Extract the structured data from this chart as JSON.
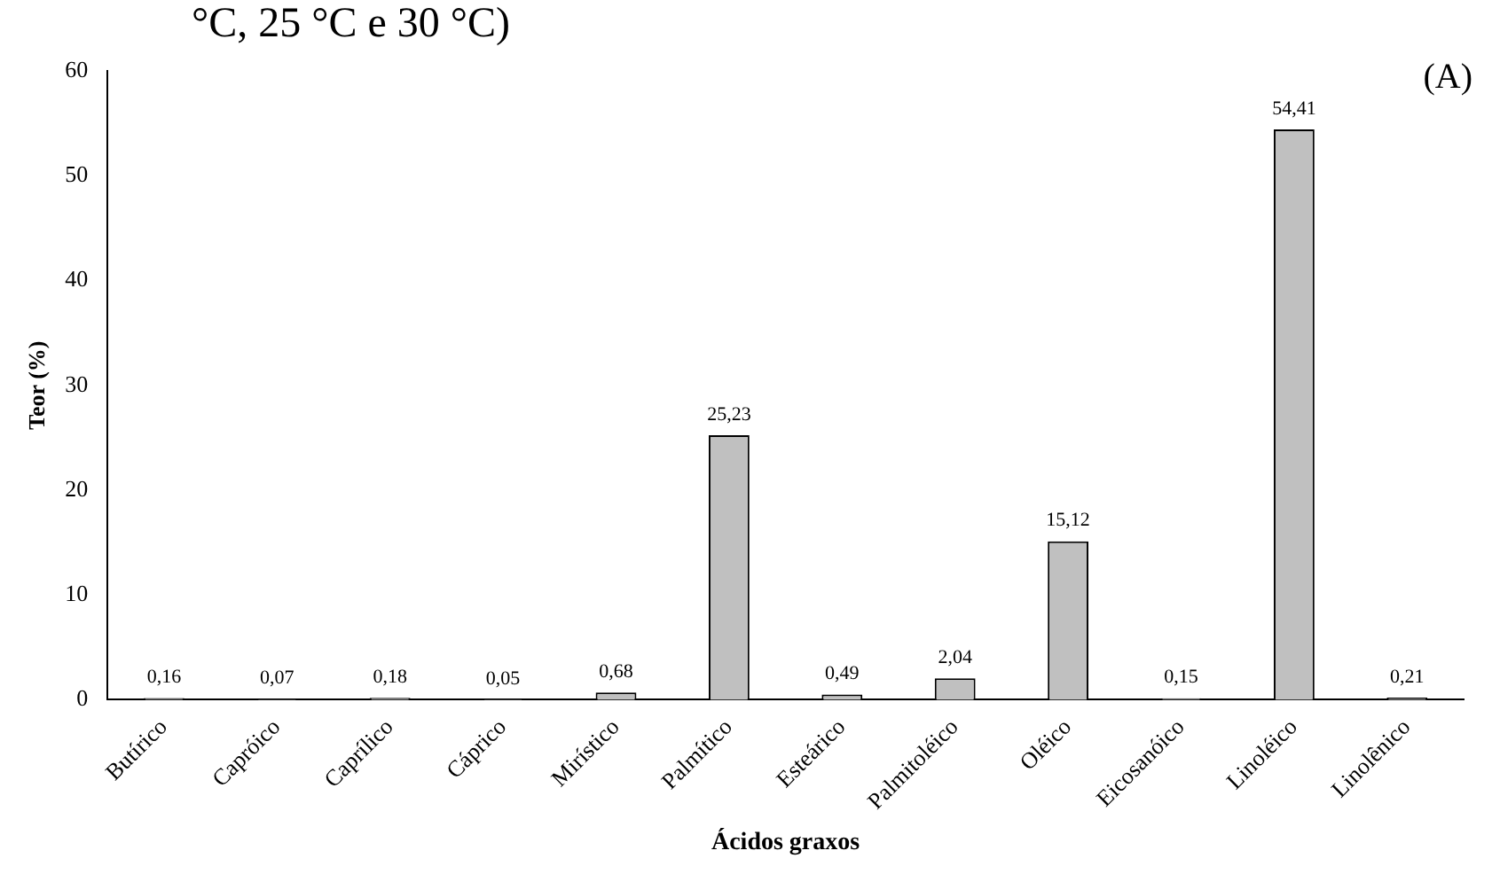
{
  "chart_data": {
    "type": "bar",
    "xlabel": "Ácidos graxos",
    "ylabel": "Teor (%)",
    "annotations": [
      "°C, 25 °C e 30 °C)",
      "(A)"
    ],
    "categories": [
      "Butírico",
      "Capróico",
      "Caprílico",
      "Cáprico",
      "Mirístico",
      "Palmítico",
      "Esteárico",
      "Palmitoléico",
      "Oléico",
      "Eicosanóico",
      "Linoléico",
      "Linolênico"
    ],
    "values": [
      0.16,
      0.07,
      0.18,
      0.05,
      0.68,
      25.23,
      0.49,
      2.04,
      15.12,
      0.15,
      54.41,
      0.21
    ],
    "value_labels": [
      "0,16",
      "0,07",
      "0,18",
      "0,05",
      "0,68",
      "25,23",
      "0,49",
      "2,04",
      "15,12",
      "0,15",
      "54,41",
      "0,21"
    ],
    "color": "#c0c0c0",
    "ylim": [
      0,
      60
    ],
    "yticks": [
      0,
      10,
      20,
      30,
      40,
      50,
      60
    ],
    "grid": false,
    "legend": false
  }
}
